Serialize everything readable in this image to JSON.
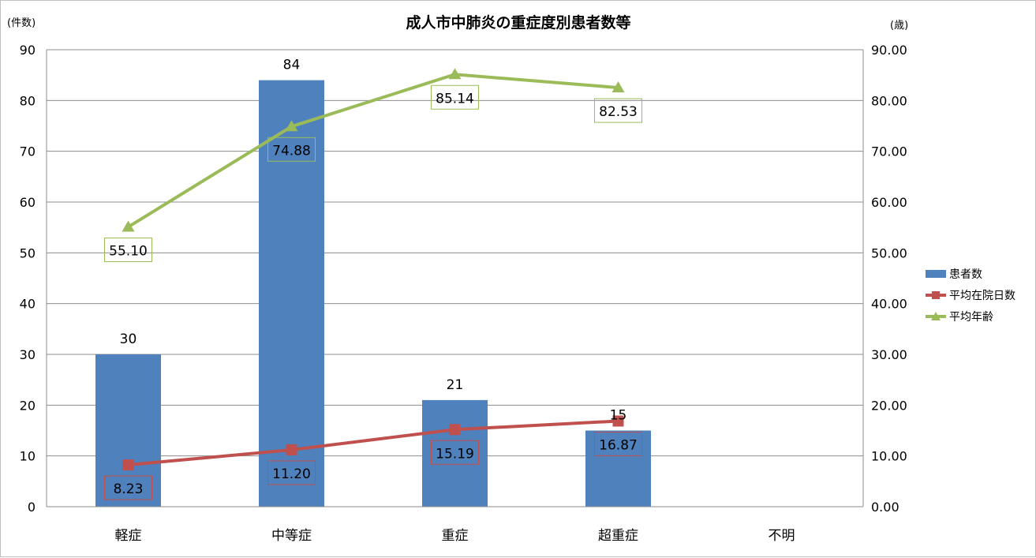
{
  "chart_data": {
    "type": "bar",
    "title": "成人市中肺炎の重症度別患者数等",
    "y_unit_left": "(件数)",
    "y_unit_right": "(歳)",
    "categories": [
      "軽症",
      "中等症",
      "重症",
      "超重症",
      "不明"
    ],
    "ylim_left": [
      0,
      90
    ],
    "ylim_right": [
      0,
      90
    ],
    "yticks_left": [
      "0",
      "10",
      "20",
      "30",
      "40",
      "50",
      "60",
      "70",
      "80",
      "90"
    ],
    "yticks_right": [
      "0.00",
      "10.00",
      "20.00",
      "30.00",
      "40.00",
      "50.00",
      "60.00",
      "70.00",
      "80.00",
      "90.00"
    ],
    "grid": true,
    "legend_position": "right",
    "series": [
      {
        "name": "患者数",
        "kind": "bar",
        "axis": "left",
        "color": "#4f81bd",
        "values": [
          30,
          84,
          21,
          15,
          null
        ],
        "labels": [
          "30",
          "84",
          "21",
          "15",
          ""
        ]
      },
      {
        "name": "平均在院日数",
        "kind": "line",
        "marker": "square",
        "axis": "right",
        "color": "#c0504d",
        "values": [
          8.23,
          11.2,
          15.19,
          16.87,
          null
        ],
        "labels": [
          "8.23",
          "11.20",
          "15.19",
          "16.87",
          ""
        ]
      },
      {
        "name": "平均年齢",
        "kind": "line",
        "marker": "triangle",
        "axis": "right",
        "color": "#9bbb59",
        "values": [
          55.1,
          74.88,
          85.14,
          82.53,
          null
        ],
        "labels": [
          "55.10",
          "74.88",
          "85.14",
          "82.53",
          ""
        ]
      }
    ]
  }
}
